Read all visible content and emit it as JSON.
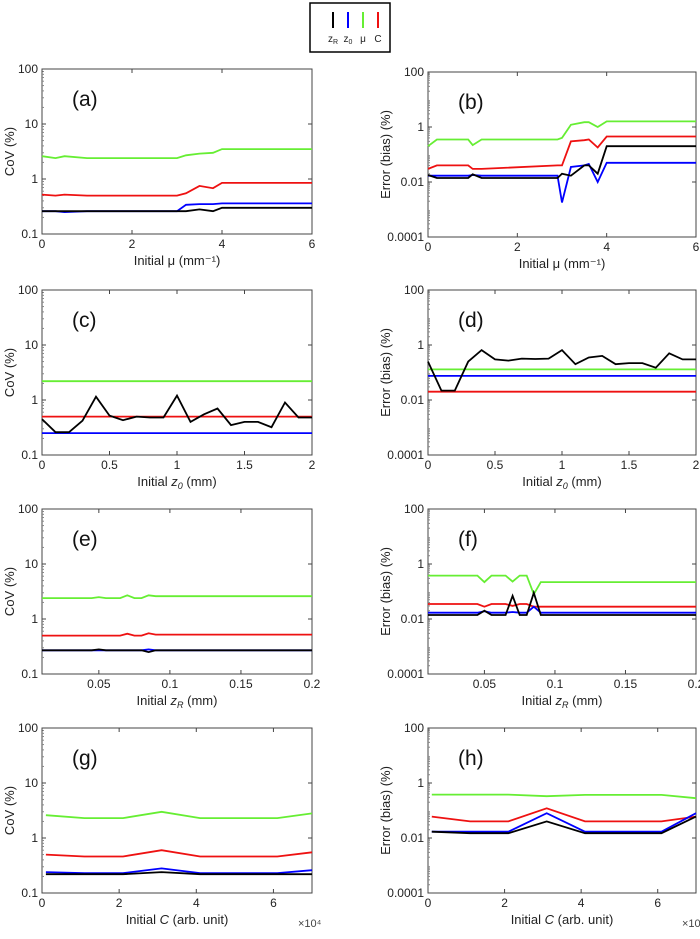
{
  "legend": {
    "entries": [
      {
        "label": "zR",
        "main": "z",
        "sub": "R",
        "color": "#000000"
      },
      {
        "label": "z0",
        "main": "z",
        "sub": "0",
        "color": "#0000ff"
      },
      {
        "label": "μ",
        "main": "μ",
        "sub": "",
        "color": "#66ee33"
      },
      {
        "label": "C",
        "main": "C",
        "sub": "",
        "color": "#ee1111"
      }
    ]
  },
  "chart_data": [
    {
      "type": "line",
      "panel_label": "(a)",
      "ylabel": "CoV (%)",
      "xlabel": "Initial μ (mm⁻¹)",
      "yscale": "log",
      "ylim": [
        0.1,
        100
      ],
      "yticks": [
        "0.1",
        "1",
        "10",
        "100"
      ],
      "xlim": [
        0,
        6
      ],
      "xticks": [
        "0",
        "2",
        "4",
        "6"
      ],
      "x": [
        0,
        0.3,
        0.5,
        1,
        2,
        3,
        3.2,
        3.5,
        3.8,
        4,
        6
      ],
      "series": [
        {
          "name": "μ",
          "values": [
            2.6,
            2.4,
            2.6,
            2.4,
            2.4,
            2.4,
            2.7,
            2.9,
            3.0,
            3.5,
            3.5
          ]
        },
        {
          "name": "C",
          "values": [
            0.52,
            0.5,
            0.52,
            0.5,
            0.5,
            0.5,
            0.55,
            0.75,
            0.68,
            0.85,
            0.85
          ]
        },
        {
          "name": "z0",
          "values": [
            0.26,
            0.26,
            0.25,
            0.26,
            0.26,
            0.26,
            0.34,
            0.35,
            0.35,
            0.36,
            0.36
          ]
        },
        {
          "name": "zR",
          "values": [
            0.26,
            0.26,
            0.26,
            0.26,
            0.26,
            0.26,
            0.26,
            0.28,
            0.26,
            0.3,
            0.3
          ]
        }
      ]
    },
    {
      "type": "line",
      "panel_label": "(b)",
      "ylabel": "Error (bias) (%)",
      "xlabel": "Initial μ (mm⁻¹)",
      "yscale": "log",
      "ylim": [
        0.0001,
        100
      ],
      "yticks": [
        "0.0001",
        "0.01",
        "1",
        "100"
      ],
      "xlim": [
        0,
        6
      ],
      "xticks": [
        "0",
        "2",
        "4",
        "6"
      ],
      "x": [
        0,
        0.2,
        0.9,
        1.0,
        1.2,
        2.9,
        3.0,
        3.2,
        3.5,
        3.6,
        3.8,
        4,
        6
      ],
      "series": [
        {
          "name": "μ",
          "values": [
            0.2,
            0.35,
            0.35,
            0.22,
            0.35,
            0.35,
            0.4,
            1.2,
            1.5,
            1.5,
            1.0,
            1.6,
            1.6
          ]
        },
        {
          "name": "C",
          "values": [
            0.03,
            0.04,
            0.04,
            0.03,
            0.03,
            0.04,
            0.04,
            0.3,
            0.33,
            0.35,
            0.18,
            0.45,
            0.45
          ]
        },
        {
          "name": "z0",
          "values": [
            0.017,
            0.017,
            0.017,
            0.018,
            0.017,
            0.017,
            0.0018,
            0.035,
            0.04,
            0.045,
            0.01,
            0.05,
            0.05
          ]
        },
        {
          "name": "zR",
          "values": [
            0.018,
            0.014,
            0.014,
            0.019,
            0.014,
            0.014,
            0.02,
            0.017,
            0.04,
            0.04,
            0.02,
            0.2,
            0.2
          ]
        }
      ]
    },
    {
      "type": "line",
      "panel_label": "(c)",
      "ylabel": "CoV (%)",
      "xlabel": "Initial z0 (mm)",
      "yscale": "log",
      "ylim": [
        0.1,
        100
      ],
      "yticks": [
        "0.1",
        "1",
        "10",
        "100"
      ],
      "xlim": [
        0,
        2
      ],
      "xticks": [
        "0",
        "0.5",
        "1",
        "1.5",
        "2"
      ],
      "x": [
        0,
        0.1,
        0.2,
        0.3,
        0.4,
        0.5,
        0.6,
        0.7,
        0.8,
        0.9,
        1.0,
        1.1,
        1.2,
        1.3,
        1.4,
        1.5,
        1.6,
        1.7,
        1.8,
        1.9,
        2.0
      ],
      "series": [
        {
          "name": "μ",
          "values": [
            2.2,
            2.2,
            2.2,
            2.2,
            2.2,
            2.2,
            2.2,
            2.2,
            2.2,
            2.2,
            2.2,
            2.2,
            2.2,
            2.2,
            2.2,
            2.2,
            2.2,
            2.2,
            2.2,
            2.2,
            2.2
          ]
        },
        {
          "name": "C",
          "values": [
            0.5,
            0.5,
            0.5,
            0.5,
            0.5,
            0.5,
            0.5,
            0.5,
            0.5,
            0.5,
            0.5,
            0.5,
            0.5,
            0.5,
            0.5,
            0.5,
            0.5,
            0.5,
            0.5,
            0.5,
            0.5
          ]
        },
        {
          "name": "z0",
          "values": [
            0.25,
            0.25,
            0.25,
            0.25,
            0.25,
            0.25,
            0.25,
            0.25,
            0.25,
            0.25,
            0.25,
            0.25,
            0.25,
            0.25,
            0.25,
            0.25,
            0.25,
            0.25,
            0.25,
            0.25,
            0.25
          ]
        },
        {
          "name": "zR",
          "values": [
            0.45,
            0.26,
            0.26,
            0.42,
            1.15,
            0.52,
            0.43,
            0.5,
            0.48,
            0.48,
            1.2,
            0.4,
            0.55,
            0.7,
            0.35,
            0.4,
            0.4,
            0.32,
            0.9,
            0.48,
            0.48
          ]
        }
      ]
    },
    {
      "type": "line",
      "panel_label": "(d)",
      "ylabel": "Error (bias) (%)",
      "xlabel": "Initial z0 (mm)",
      "yscale": "log",
      "ylim": [
        0.0001,
        100
      ],
      "yticks": [
        "0.0001",
        "0.01",
        "1",
        "100"
      ],
      "xlim": [
        0,
        2
      ],
      "xticks": [
        "0",
        "0.5",
        "1",
        "1.5",
        "2"
      ],
      "x": [
        0,
        0.1,
        0.2,
        0.3,
        0.4,
        0.5,
        0.6,
        0.7,
        0.8,
        0.9,
        1.0,
        1.1,
        1.2,
        1.3,
        1.4,
        1.5,
        1.6,
        1.7,
        1.8,
        1.9,
        2.0
      ],
      "series": [
        {
          "name": "μ",
          "values": [
            0.13,
            0.13,
            0.13,
            0.13,
            0.13,
            0.13,
            0.13,
            0.13,
            0.13,
            0.13,
            0.13,
            0.13,
            0.13,
            0.13,
            0.13,
            0.13,
            0.13,
            0.13,
            0.13,
            0.13,
            0.13
          ]
        },
        {
          "name": "C",
          "values": [
            0.02,
            0.02,
            0.02,
            0.02,
            0.02,
            0.02,
            0.02,
            0.02,
            0.02,
            0.02,
            0.02,
            0.02,
            0.02,
            0.02,
            0.02,
            0.02,
            0.02,
            0.02,
            0.02,
            0.02,
            0.02
          ]
        },
        {
          "name": "z0",
          "values": [
            0.075,
            0.075,
            0.075,
            0.075,
            0.075,
            0.075,
            0.075,
            0.075,
            0.075,
            0.075,
            0.075,
            0.075,
            0.075,
            0.075,
            0.075,
            0.075,
            0.075,
            0.075,
            0.075,
            0.075,
            0.075
          ]
        },
        {
          "name": "zR",
          "values": [
            0.25,
            0.022,
            0.022,
            0.25,
            0.65,
            0.3,
            0.27,
            0.32,
            0.31,
            0.32,
            0.65,
            0.2,
            0.35,
            0.4,
            0.2,
            0.22,
            0.22,
            0.15,
            0.5,
            0.3,
            0.3
          ]
        }
      ]
    },
    {
      "type": "line",
      "panel_label": "(e)",
      "ylabel": "CoV (%)",
      "xlabel": "Initial zR (mm)",
      "yscale": "log",
      "ylim": [
        0.1,
        100
      ],
      "yticks": [
        "0.1",
        "1",
        "10",
        "100"
      ],
      "xlim": [
        0.01,
        0.2
      ],
      "xticks": [
        "0.05",
        "0.1",
        "0.15",
        "0.2"
      ],
      "x": [
        0.01,
        0.045,
        0.05,
        0.055,
        0.065,
        0.07,
        0.075,
        0.08,
        0.085,
        0.09,
        0.2
      ],
      "series": [
        {
          "name": "μ",
          "values": [
            2.4,
            2.4,
            2.5,
            2.4,
            2.4,
            2.7,
            2.4,
            2.4,
            2.7,
            2.6,
            2.6
          ]
        },
        {
          "name": "C",
          "values": [
            0.5,
            0.5,
            0.5,
            0.5,
            0.5,
            0.54,
            0.5,
            0.5,
            0.55,
            0.52,
            0.52
          ]
        },
        {
          "name": "z0",
          "values": [
            0.27,
            0.27,
            0.27,
            0.27,
            0.27,
            0.27,
            0.27,
            0.27,
            0.28,
            0.27,
            0.27
          ]
        },
        {
          "name": "zR",
          "values": [
            0.27,
            0.27,
            0.28,
            0.27,
            0.27,
            0.27,
            0.27,
            0.27,
            0.25,
            0.27,
            0.27
          ]
        }
      ]
    },
    {
      "type": "line",
      "panel_label": "(f)",
      "ylabel": "Error (bias) (%)",
      "xlabel": "Initial zR (mm)",
      "yscale": "log",
      "ylim": [
        0.0001,
        100
      ],
      "yticks": [
        "0.0001",
        "0.01",
        "1",
        "100"
      ],
      "xlim": [
        0.01,
        0.2
      ],
      "xticks": [
        "0.05",
        "0.1",
        "0.15",
        "0.2"
      ],
      "x": [
        0.01,
        0.045,
        0.05,
        0.055,
        0.065,
        0.07,
        0.075,
        0.08,
        0.085,
        0.09,
        0.2
      ],
      "series": [
        {
          "name": "μ",
          "values": [
            0.38,
            0.38,
            0.22,
            0.38,
            0.38,
            0.23,
            0.38,
            0.38,
            0.08,
            0.22,
            0.22
          ]
        },
        {
          "name": "C",
          "values": [
            0.035,
            0.035,
            0.028,
            0.035,
            0.035,
            0.03,
            0.035,
            0.035,
            0.028,
            0.028,
            0.028
          ]
        },
        {
          "name": "z0",
          "values": [
            0.017,
            0.017,
            0.019,
            0.017,
            0.017,
            0.018,
            0.017,
            0.017,
            0.028,
            0.017,
            0.017
          ]
        },
        {
          "name": "zR",
          "values": [
            0.014,
            0.014,
            0.02,
            0.014,
            0.014,
            0.07,
            0.014,
            0.014,
            0.09,
            0.014,
            0.014
          ]
        }
      ]
    },
    {
      "type": "line",
      "panel_label": "(g)",
      "ylabel": "CoV (%)",
      "xlabel": "Initial C (arb. unit)",
      "x_multiplier": "×10⁴",
      "yscale": "log",
      "ylim": [
        0.1,
        100
      ],
      "yticks": [
        "0.1",
        "1",
        "10",
        "100"
      ],
      "xlim": [
        0,
        7
      ],
      "xticks": [
        "0",
        "2",
        "4",
        "6"
      ],
      "x": [
        0.1,
        1.1,
        2.1,
        3.1,
        4.1,
        5.1,
        6.1,
        7
      ],
      "series": [
        {
          "name": "μ",
          "values": [
            2.6,
            2.3,
            2.3,
            3.0,
            2.3,
            2.3,
            2.3,
            2.8
          ]
        },
        {
          "name": "C",
          "values": [
            0.5,
            0.46,
            0.46,
            0.6,
            0.46,
            0.46,
            0.46,
            0.55
          ]
        },
        {
          "name": "z0",
          "values": [
            0.24,
            0.23,
            0.23,
            0.28,
            0.23,
            0.23,
            0.23,
            0.26
          ]
        },
        {
          "name": "zR",
          "values": [
            0.22,
            0.22,
            0.22,
            0.24,
            0.22,
            0.22,
            0.22,
            0.22
          ]
        }
      ]
    },
    {
      "type": "line",
      "panel_label": "(h)",
      "ylabel": "Error (bias) (%)",
      "xlabel": "Initial C (arb. unit)",
      "x_multiplier": "×10⁴",
      "yscale": "log",
      "ylim": [
        0.0001,
        100
      ],
      "yticks": [
        "0.0001",
        "0.01",
        "1",
        "100"
      ],
      "xlim": [
        0,
        7
      ],
      "xticks": [
        "0",
        "2",
        "4",
        "6"
      ],
      "x": [
        0.1,
        1.1,
        2.1,
        3.1,
        4.1,
        5.1,
        6.1,
        7
      ],
      "series": [
        {
          "name": "μ",
          "values": [
            0.38,
            0.38,
            0.38,
            0.33,
            0.37,
            0.37,
            0.37,
            0.28
          ]
        },
        {
          "name": "C",
          "values": [
            0.06,
            0.04,
            0.04,
            0.12,
            0.04,
            0.04,
            0.04,
            0.06
          ]
        },
        {
          "name": "z0",
          "values": [
            0.017,
            0.017,
            0.017,
            0.08,
            0.017,
            0.017,
            0.017,
            0.08
          ]
        },
        {
          "name": "zR",
          "values": [
            0.017,
            0.015,
            0.015,
            0.04,
            0.015,
            0.015,
            0.015,
            0.06
          ]
        }
      ]
    }
  ]
}
